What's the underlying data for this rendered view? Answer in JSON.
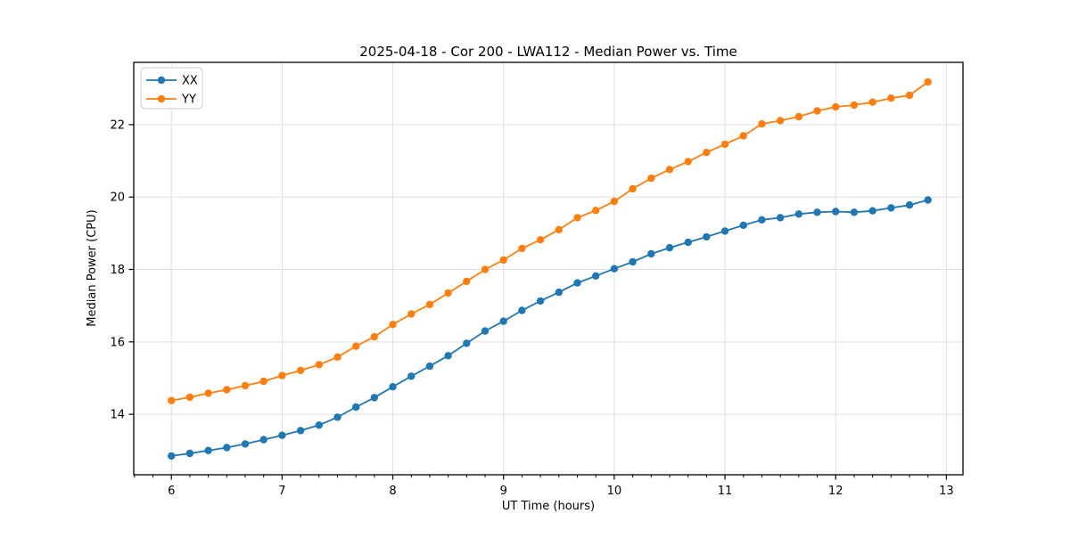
{
  "chart_data": {
    "type": "line",
    "title": "2025-04-18 - Cor 200 - LWA112 - Median Power vs. Time",
    "xlabel": "UT Time (hours)",
    "ylabel": "Median Power (CPU)",
    "xlim": [
      5.66,
      13.15
    ],
    "ylim": [
      12.33,
      23.72
    ],
    "xticks": [
      6,
      7,
      8,
      9,
      10,
      11,
      12,
      13
    ],
    "yticks": [
      14,
      16,
      18,
      20,
      22
    ],
    "x_minor_tick_step": 0.16667,
    "grid": true,
    "legend_position": "upper left",
    "x": [
      6.0,
      6.1667,
      6.3333,
      6.5,
      6.6667,
      6.8333,
      7.0,
      7.1667,
      7.3333,
      7.5,
      7.6667,
      7.8333,
      8.0,
      8.1667,
      8.3333,
      8.5,
      8.6667,
      8.8333,
      9.0,
      9.1667,
      9.3333,
      9.5,
      9.6667,
      9.8333,
      10.0,
      10.1667,
      10.3333,
      10.5,
      10.6667,
      10.8333,
      11.0,
      11.1667,
      11.3333,
      11.5,
      11.6667,
      11.8333,
      12.0,
      12.1667,
      12.3333,
      12.5,
      12.6667,
      12.8333
    ],
    "series": [
      {
        "name": "XX",
        "color": "#1f77b4",
        "values": [
          12.85,
          12.92,
          13.0,
          13.08,
          13.18,
          13.3,
          13.42,
          13.55,
          13.7,
          13.92,
          14.2,
          14.46,
          14.76,
          15.05,
          15.33,
          15.62,
          15.96,
          16.3,
          16.57,
          16.87,
          17.13,
          17.37,
          17.63,
          17.82,
          18.02,
          18.21,
          18.43,
          18.6,
          18.75,
          18.9,
          19.06,
          19.22,
          19.37,
          19.43,
          19.53,
          19.58,
          19.6,
          19.58,
          19.62,
          19.7,
          19.78,
          19.92
        ]
      },
      {
        "name": "YY",
        "color": "#ff7f0e",
        "values": [
          14.38,
          14.47,
          14.58,
          14.68,
          14.79,
          14.91,
          15.07,
          15.21,
          15.37,
          15.58,
          15.88,
          16.14,
          16.48,
          16.77,
          17.03,
          17.35,
          17.67,
          18.0,
          18.26,
          18.58,
          18.82,
          19.1,
          19.43,
          19.63,
          19.88,
          20.23,
          20.52,
          20.76,
          20.98,
          21.23,
          21.46,
          21.69,
          22.02,
          22.11,
          22.22,
          22.38,
          22.49,
          22.54,
          22.62,
          22.73,
          22.81,
          23.18
        ]
      }
    ],
    "style": {
      "grid_color": "#e0e0e0",
      "spine_color": "#000000",
      "background": "#ffffff",
      "marker_radius": 4.2,
      "line_width": 1.8
    }
  }
}
